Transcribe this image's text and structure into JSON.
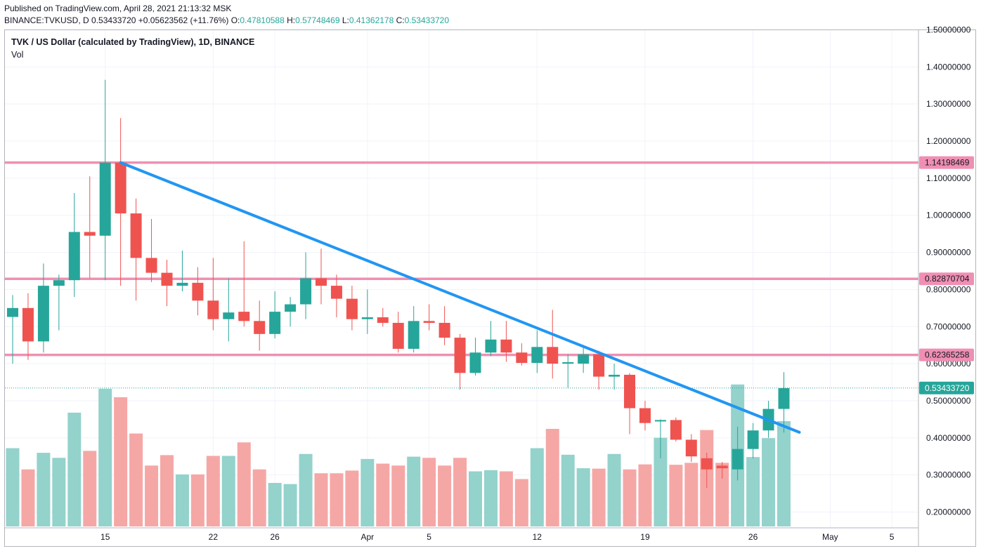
{
  "header": {
    "published": "Published on TradingView.com, April 28, 2021 21:13:32 MSK",
    "symbol_line": "BINANCE:TVKUSD, D",
    "last": "0.53433720",
    "change": "+0.05623562 (+11.76%)",
    "o_label": "O:",
    "o_value": "0.47810588",
    "h_label": "H:",
    "h_value": "0.57748469",
    "l_label": "L:",
    "l_value": "0.41362178",
    "c_label": "C:",
    "c_value": "0.53433720"
  },
  "legend": {
    "title": "TVK / US Dollar (calculated by TradingView), 1D, BINANCE",
    "volume": "Vol"
  },
  "colors": {
    "up": "#26a69a",
    "down": "#ef5350",
    "up_vol": "#94d2cc",
    "down_vol": "#f5a7a6",
    "trendline": "#2196f3",
    "hline": "#f08fb3",
    "last_price_line": "#26a69a",
    "grid": "#f0f3fa",
    "axis_text": "#131722"
  },
  "chart_data": {
    "type": "candlestick",
    "symbol": "TVKUSD",
    "exchange": "BINANCE",
    "interval": "1D",
    "y_axis": {
      "ticks": [
        "0.20000000",
        "0.30000000",
        "0.40000000",
        "0.50000000",
        "0.60000000",
        "0.70000000",
        "0.80000000",
        "0.90000000",
        "1.00000000",
        "1.10000000",
        "1.20000000",
        "1.30000000",
        "1.40000000",
        "1.50000000"
      ],
      "tick_values": [
        0.2,
        0.3,
        0.4,
        0.5,
        0.6,
        0.7,
        0.8,
        0.9,
        1.0,
        1.1,
        1.2,
        1.3,
        1.4,
        1.5
      ],
      "range": [
        0.15,
        1.52
      ]
    },
    "x_axis": {
      "labels": [
        {
          "text": "15",
          "date": "2021-03-15"
        },
        {
          "text": "22",
          "date": "2021-03-22"
        },
        {
          "text": "26",
          "date": "2021-03-26"
        },
        {
          "text": "Apr",
          "date": "2021-04-01"
        },
        {
          "text": "5",
          "date": "2021-04-05"
        },
        {
          "text": "12",
          "date": "2021-04-12"
        },
        {
          "text": "19",
          "date": "2021-04-19"
        },
        {
          "text": "26",
          "date": "2021-04-26"
        },
        {
          "text": "May",
          "date": "2021-05-01"
        },
        {
          "text": "5",
          "date": "2021-05-05"
        }
      ],
      "range": [
        "2021-03-09",
        "2021-05-06"
      ]
    },
    "candles": [
      {
        "date": "2021-03-09",
        "o": 0.726,
        "h": 0.785,
        "l": 0.6,
        "c": 0.75,
        "v": 0.33
      },
      {
        "date": "2021-03-10",
        "o": 0.75,
        "h": 0.79,
        "l": 0.61,
        "c": 0.66,
        "v": 0.275
      },
      {
        "date": "2021-03-11",
        "o": 0.66,
        "h": 0.87,
        "l": 0.63,
        "c": 0.81,
        "v": 0.318
      },
      {
        "date": "2021-03-12",
        "o": 0.81,
        "h": 0.84,
        "l": 0.69,
        "c": 0.825,
        "v": 0.305
      },
      {
        "date": "2021-03-13",
        "o": 0.825,
        "h": 1.06,
        "l": 0.78,
        "c": 0.955,
        "v": 0.422
      },
      {
        "date": "2021-03-14",
        "o": 0.955,
        "h": 1.105,
        "l": 0.83,
        "c": 0.945,
        "v": 0.323
      },
      {
        "date": "2021-03-15",
        "o": 0.945,
        "h": 1.365,
        "l": 0.825,
        "c": 1.142,
        "v": 0.484
      },
      {
        "date": "2021-03-16",
        "o": 1.142,
        "h": 1.262,
        "l": 0.81,
        "c": 1.005,
        "v": 0.462
      },
      {
        "date": "2021-03-17",
        "o": 1.005,
        "h": 1.045,
        "l": 0.77,
        "c": 0.885,
        "v": 0.368
      },
      {
        "date": "2021-03-18",
        "o": 0.885,
        "h": 0.99,
        "l": 0.82,
        "c": 0.845,
        "v": 0.285
      },
      {
        "date": "2021-03-19",
        "o": 0.845,
        "h": 0.88,
        "l": 0.755,
        "c": 0.81,
        "v": 0.312
      },
      {
        "date": "2021-03-20",
        "o": 0.81,
        "h": 0.905,
        "l": 0.795,
        "c": 0.818,
        "v": 0.262
      },
      {
        "date": "2021-03-21",
        "o": 0.818,
        "h": 0.86,
        "l": 0.73,
        "c": 0.77,
        "v": 0.262
      },
      {
        "date": "2021-03-22",
        "o": 0.77,
        "h": 0.885,
        "l": 0.69,
        "c": 0.72,
        "v": 0.31
      },
      {
        "date": "2021-03-23",
        "o": 0.72,
        "h": 0.83,
        "l": 0.66,
        "c": 0.738,
        "v": 0.31
      },
      {
        "date": "2021-03-24",
        "o": 0.74,
        "h": 0.93,
        "l": 0.7,
        "c": 0.715,
        "v": 0.345
      },
      {
        "date": "2021-03-25",
        "o": 0.715,
        "h": 0.77,
        "l": 0.635,
        "c": 0.68,
        "v": 0.275
      },
      {
        "date": "2021-03-26",
        "o": 0.68,
        "h": 0.795,
        "l": 0.668,
        "c": 0.74,
        "v": 0.24
      },
      {
        "date": "2021-03-27",
        "o": 0.74,
        "h": 0.78,
        "l": 0.7,
        "c": 0.76,
        "v": 0.237
      },
      {
        "date": "2021-03-28",
        "o": 0.76,
        "h": 0.9,
        "l": 0.72,
        "c": 0.83,
        "v": 0.315
      },
      {
        "date": "2021-03-29",
        "o": 0.83,
        "h": 0.91,
        "l": 0.76,
        "c": 0.81,
        "v": 0.265
      },
      {
        "date": "2021-03-30",
        "o": 0.81,
        "h": 0.84,
        "l": 0.725,
        "c": 0.775,
        "v": 0.265
      },
      {
        "date": "2021-03-31",
        "o": 0.775,
        "h": 0.81,
        "l": 0.69,
        "c": 0.72,
        "v": 0.272
      },
      {
        "date": "2021-04-01",
        "o": 0.72,
        "h": 0.8,
        "l": 0.68,
        "c": 0.725,
        "v": 0.302
      },
      {
        "date": "2021-04-02",
        "o": 0.725,
        "h": 0.75,
        "l": 0.7,
        "c": 0.71,
        "v": 0.29
      },
      {
        "date": "2021-04-03",
        "o": 0.71,
        "h": 0.74,
        "l": 0.63,
        "c": 0.64,
        "v": 0.285
      },
      {
        "date": "2021-04-04",
        "o": 0.64,
        "h": 0.755,
        "l": 0.63,
        "c": 0.715,
        "v": 0.308
      },
      {
        "date": "2021-04-05",
        "o": 0.715,
        "h": 0.76,
        "l": 0.69,
        "c": 0.71,
        "v": 0.305
      },
      {
        "date": "2021-04-06",
        "o": 0.71,
        "h": 0.755,
        "l": 0.65,
        "c": 0.67,
        "v": 0.285
      },
      {
        "date": "2021-04-07",
        "o": 0.67,
        "h": 0.68,
        "l": 0.53,
        "c": 0.575,
        "v": 0.305
      },
      {
        "date": "2021-04-08",
        "o": 0.575,
        "h": 0.67,
        "l": 0.568,
        "c": 0.63,
        "v": 0.27
      },
      {
        "date": "2021-04-09",
        "o": 0.63,
        "h": 0.715,
        "l": 0.62,
        "c": 0.665,
        "v": 0.273
      },
      {
        "date": "2021-04-10",
        "o": 0.665,
        "h": 0.715,
        "l": 0.605,
        "c": 0.63,
        "v": 0.27
      },
      {
        "date": "2021-04-11",
        "o": 0.63,
        "h": 0.655,
        "l": 0.595,
        "c": 0.602,
        "v": 0.25
      },
      {
        "date": "2021-04-12",
        "o": 0.602,
        "h": 0.69,
        "l": 0.575,
        "c": 0.645,
        "v": 0.33
      },
      {
        "date": "2021-04-13",
        "o": 0.645,
        "h": 0.745,
        "l": 0.56,
        "c": 0.6,
        "v": 0.38
      },
      {
        "date": "2021-04-14",
        "o": 0.6,
        "h": 0.625,
        "l": 0.535,
        "c": 0.604,
        "v": 0.313
      },
      {
        "date": "2021-04-15",
        "o": 0.6,
        "h": 0.65,
        "l": 0.575,
        "c": 0.625,
        "v": 0.278
      },
      {
        "date": "2021-04-16",
        "o": 0.625,
        "h": 0.635,
        "l": 0.53,
        "c": 0.565,
        "v": 0.277
      },
      {
        "date": "2021-04-17",
        "o": 0.565,
        "h": 0.6,
        "l": 0.53,
        "c": 0.57,
        "v": 0.315
      },
      {
        "date": "2021-04-18",
        "o": 0.57,
        "h": 0.575,
        "l": 0.41,
        "c": 0.48,
        "v": 0.275
      },
      {
        "date": "2021-04-19",
        "o": 0.48,
        "h": 0.5,
        "l": 0.42,
        "c": 0.44,
        "v": 0.288
      },
      {
        "date": "2021-04-20",
        "o": 0.445,
        "h": 0.45,
        "l": 0.345,
        "c": 0.448,
        "v": 0.357
      },
      {
        "date": "2021-04-21",
        "o": 0.448,
        "h": 0.455,
        "l": 0.39,
        "c": 0.395,
        "v": 0.287
      },
      {
        "date": "2021-04-22",
        "o": 0.395,
        "h": 0.41,
        "l": 0.335,
        "c": 0.35,
        "v": 0.292
      },
      {
        "date": "2021-04-23",
        "o": 0.345,
        "h": 0.36,
        "l": 0.265,
        "c": 0.315,
        "v": 0.377
      },
      {
        "date": "2021-04-24",
        "o": 0.325,
        "h": 0.335,
        "l": 0.29,
        "c": 0.318,
        "v": 0.292
      },
      {
        "date": "2021-04-25",
        "o": 0.315,
        "h": 0.43,
        "l": 0.285,
        "c": 0.37,
        "v": 0.495
      },
      {
        "date": "2021-04-26",
        "o": 0.37,
        "h": 0.44,
        "l": 0.345,
        "c": 0.42,
        "v": 0.307
      },
      {
        "date": "2021-04-27",
        "o": 0.42,
        "h": 0.5,
        "l": 0.4,
        "c": 0.478,
        "v": 0.356
      },
      {
        "date": "2021-04-28",
        "o": 0.478,
        "h": 0.577,
        "l": 0.414,
        "c": 0.534,
        "v": 0.4
      }
    ],
    "volume_scale": "overlay (volume values shown as visual overlay levels, no axis printed)",
    "horizontal_lines": [
      {
        "value": 1.14198469,
        "label": "1.14198469"
      },
      {
        "value": 0.82870704,
        "label": "0.82870704"
      },
      {
        "value": 0.62365258,
        "label": "0.62365258"
      }
    ],
    "last_price": {
      "value": 0.5343372,
      "label": "0.53433720"
    },
    "trendline": {
      "start": {
        "date": "2021-03-16",
        "value": 1.142
      },
      "end": {
        "date": "2021-04-28",
        "value": 0.415
      }
    },
    "grid": true
  }
}
